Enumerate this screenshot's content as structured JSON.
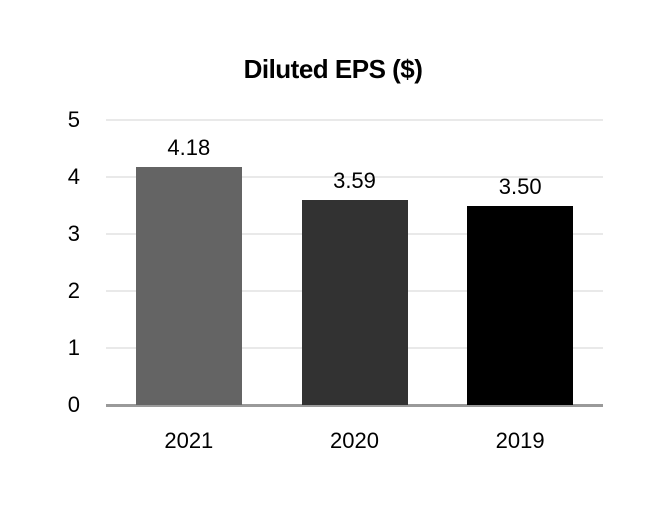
{
  "chart_data": {
    "type": "bar",
    "title": "Diluted EPS ($)",
    "categories": [
      "2021",
      "2020",
      "2019"
    ],
    "values": [
      4.18,
      3.59,
      3.5
    ],
    "value_labels": [
      "4.18",
      "3.59",
      "3.50"
    ],
    "series": [
      {
        "name": "Diluted EPS",
        "values": [
          4.18,
          3.59,
          3.5
        ]
      }
    ],
    "bar_colors": [
      "#646464",
      "#323232",
      "#000000"
    ],
    "xlabel": "",
    "ylabel": "",
    "ylim": [
      0,
      5
    ],
    "yticks": [
      "0",
      "1",
      "2",
      "3",
      "4",
      "5"
    ],
    "grid": "horizontal gridlines on",
    "legend_position": "none",
    "colors": {
      "gridline": "#e9e9e9",
      "baseline": "#9a9a9a",
      "text": "#000000",
      "background": "#ffffff"
    }
  }
}
